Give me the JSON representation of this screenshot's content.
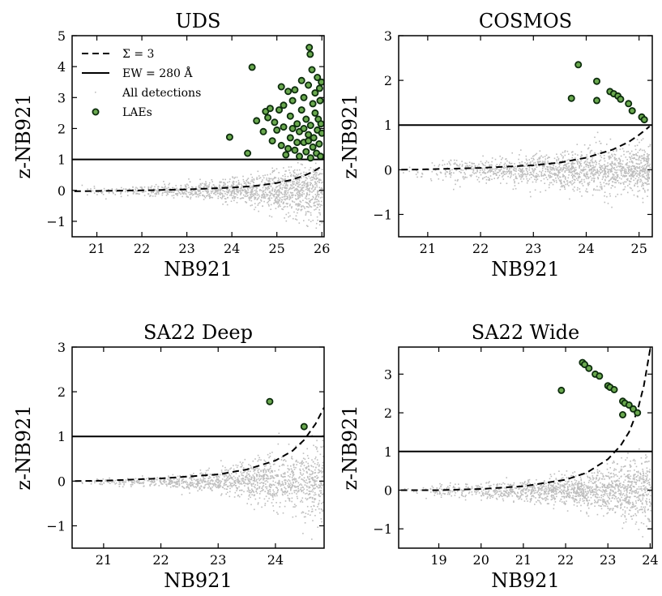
{
  "chart_data": [
    {
      "type": "scatter",
      "title": "UDS",
      "xlabel": "NB921",
      "ylabel": "z-NB921",
      "xlim": [
        20.45,
        26.05
      ],
      "ylim": [
        -1.5,
        5.0
      ],
      "xticks": [
        "21",
        "22",
        "23",
        "24",
        "25",
        "26"
      ],
      "yticks": [
        "−1",
        "0",
        "1",
        "2",
        "3",
        "4",
        "5"
      ],
      "ew_line_y": 1.0,
      "sigma_curve": {
        "x": [
          20.5,
          21,
          22,
          23,
          24,
          24.5,
          25,
          25.3,
          25.6,
          25.8,
          26.0
        ],
        "y": [
          -0.03,
          -0.02,
          0.0,
          0.03,
          0.09,
          0.14,
          0.24,
          0.33,
          0.47,
          0.6,
          0.78
        ]
      },
      "all_detections": {
        "xmin": 20.45,
        "xmax": 26.0,
        "spread": [
          [
            20.5,
            0.12
          ],
          [
            22,
            0.15
          ],
          [
            23,
            0.22
          ],
          [
            24,
            0.35
          ],
          [
            25,
            0.55
          ],
          [
            26,
            0.9
          ]
        ],
        "count": 1400
      },
      "laes": [
        {
          "x": 24.45,
          "y": 3.98
        },
        {
          "x": 23.95,
          "y": 1.72
        },
        {
          "x": 24.35,
          "y": 1.2
        },
        {
          "x": 24.55,
          "y": 2.25
        },
        {
          "x": 24.7,
          "y": 1.9
        },
        {
          "x": 24.75,
          "y": 2.55
        },
        {
          "x": 24.8,
          "y": 2.35
        },
        {
          "x": 24.85,
          "y": 2.65
        },
        {
          "x": 24.9,
          "y": 1.6
        },
        {
          "x": 24.95,
          "y": 2.2
        },
        {
          "x": 25.0,
          "y": 1.95
        },
        {
          "x": 25.05,
          "y": 2.6
        },
        {
          "x": 25.1,
          "y": 3.35
        },
        {
          "x": 25.1,
          "y": 1.45
        },
        {
          "x": 25.15,
          "y": 2.05
        },
        {
          "x": 25.2,
          "y": 1.15
        },
        {
          "x": 25.25,
          "y": 3.2
        },
        {
          "x": 25.3,
          "y": 2.4
        },
        {
          "x": 25.3,
          "y": 1.7
        },
        {
          "x": 25.35,
          "y": 2.9
        },
        {
          "x": 25.4,
          "y": 3.25
        },
        {
          "x": 25.4,
          "y": 1.3
        },
        {
          "x": 25.45,
          "y": 2.15
        },
        {
          "x": 25.5,
          "y": 1.9
        },
        {
          "x": 25.5,
          "y": 1.1
        },
        {
          "x": 25.55,
          "y": 3.55
        },
        {
          "x": 25.55,
          "y": 2.6
        },
        {
          "x": 25.6,
          "y": 1.55
        },
        {
          "x": 25.6,
          "y": 3.0
        },
        {
          "x": 25.65,
          "y": 1.25
        },
        {
          "x": 25.65,
          "y": 2.3
        },
        {
          "x": 25.7,
          "y": 3.4
        },
        {
          "x": 25.7,
          "y": 1.8
        },
        {
          "x": 25.72,
          "y": 4.62
        },
        {
          "x": 25.74,
          "y": 4.4
        },
        {
          "x": 25.75,
          "y": 2.1
        },
        {
          "x": 25.75,
          "y": 1.05
        },
        {
          "x": 25.78,
          "y": 3.9
        },
        {
          "x": 25.8,
          "y": 2.8
        },
        {
          "x": 25.8,
          "y": 1.4
        },
        {
          "x": 25.82,
          "y": 1.7
        },
        {
          "x": 25.85,
          "y": 3.15
        },
        {
          "x": 25.85,
          "y": 2.5
        },
        {
          "x": 25.88,
          "y": 1.2
        },
        {
          "x": 25.9,
          "y": 3.65
        },
        {
          "x": 25.9,
          "y": 1.95
        },
        {
          "x": 25.92,
          "y": 2.3
        },
        {
          "x": 25.94,
          "y": 1.5
        },
        {
          "x": 25.95,
          "y": 3.3
        },
        {
          "x": 25.96,
          "y": 2.9
        },
        {
          "x": 25.97,
          "y": 1.1
        },
        {
          "x": 25.98,
          "y": 2.15
        },
        {
          "x": 25.99,
          "y": 3.5
        },
        {
          "x": 26.0,
          "y": 1.85
        },
        {
          "x": 25.45,
          "y": 1.55
        },
        {
          "x": 25.35,
          "y": 2.0
        },
        {
          "x": 25.6,
          "y": 2.0
        },
        {
          "x": 25.25,
          "y": 1.35
        },
        {
          "x": 25.15,
          "y": 2.75
        },
        {
          "x": 25.7,
          "y": 1.6
        }
      ],
      "legend": {
        "position": "top-left",
        "entries": [
          {
            "style": "dashed",
            "label": "Σ = 3"
          },
          {
            "style": "solid",
            "label": "EW = 280 Å"
          },
          {
            "style": "points",
            "label": "All detections"
          },
          {
            "style": "circle",
            "label": "LAEs"
          }
        ]
      }
    },
    {
      "type": "scatter",
      "title": "COSMOS",
      "xlabel": "NB921",
      "ylabel": "z-NB921",
      "xlim": [
        20.45,
        25.25
      ],
      "ylim": [
        -1.5,
        3.0
      ],
      "xticks": [
        "21",
        "22",
        "23",
        "24",
        "25"
      ],
      "yticks": [
        "−1",
        "0",
        "1",
        "2",
        "3"
      ],
      "ew_line_y": 1.0,
      "sigma_curve": {
        "x": [
          20.5,
          21,
          22,
          23,
          23.5,
          24,
          24.5,
          24.8,
          25.0,
          25.2
        ],
        "y": [
          0.0,
          0.01,
          0.04,
          0.1,
          0.16,
          0.27,
          0.45,
          0.62,
          0.78,
          0.97
        ]
      },
      "all_detections": {
        "xmin": 20.45,
        "xmax": 25.2,
        "spread": [
          [
            20.5,
            0.2
          ],
          [
            22,
            0.25
          ],
          [
            23,
            0.32
          ],
          [
            24,
            0.42
          ],
          [
            25.2,
            0.5
          ]
        ],
        "count": 1500
      },
      "laes": [
        {
          "x": 23.85,
          "y": 2.35
        },
        {
          "x": 24.2,
          "y": 1.98
        },
        {
          "x": 23.72,
          "y": 1.6
        },
        {
          "x": 24.2,
          "y": 1.55
        },
        {
          "x": 24.45,
          "y": 1.75
        },
        {
          "x": 24.52,
          "y": 1.7
        },
        {
          "x": 24.6,
          "y": 1.65
        },
        {
          "x": 24.65,
          "y": 1.58
        },
        {
          "x": 24.8,
          "y": 1.48
        },
        {
          "x": 24.87,
          "y": 1.32
        },
        {
          "x": 25.05,
          "y": 1.18
        },
        {
          "x": 25.1,
          "y": 1.12
        }
      ]
    },
    {
      "type": "scatter",
      "title": "SA22 Deep",
      "xlabel": "NB921",
      "ylabel": "z-NB921",
      "xlim": [
        20.45,
        24.85
      ],
      "ylim": [
        -1.5,
        3.0
      ],
      "xticks": [
        "21",
        "22",
        "23",
        "24"
      ],
      "yticks": [
        "−1",
        "0",
        "1",
        "2",
        "3"
      ],
      "ew_line_y": 1.0,
      "sigma_curve": {
        "x": [
          20.5,
          21,
          22,
          23,
          23.5,
          24,
          24.3,
          24.5,
          24.7,
          24.85
        ],
        "y": [
          0.0,
          0.01,
          0.06,
          0.15,
          0.26,
          0.46,
          0.68,
          0.92,
          1.28,
          1.65
        ]
      },
      "all_detections": {
        "xmin": 20.45,
        "xmax": 24.85,
        "spread": [
          [
            20.5,
            0.05
          ],
          [
            22,
            0.12
          ],
          [
            23,
            0.25
          ],
          [
            24,
            0.5
          ],
          [
            24.85,
            0.85
          ]
        ],
        "count": 1300
      },
      "laes": [
        {
          "x": 23.9,
          "y": 1.78
        },
        {
          "x": 24.5,
          "y": 1.22
        }
      ]
    },
    {
      "type": "scatter",
      "title": "SA22 Wide",
      "xlabel": "NB921",
      "ylabel": "z-NB921",
      "xlim": [
        18.05,
        24.05
      ],
      "ylim": [
        -1.5,
        3.7
      ],
      "xticks": [
        "19",
        "20",
        "21",
        "22",
        "23",
        "24"
      ],
      "yticks": [
        "−1",
        "0",
        "1",
        "2",
        "3"
      ],
      "ew_line_y": 1.0,
      "sigma_curve": {
        "x": [
          18.1,
          19,
          20,
          21,
          22,
          22.5,
          23,
          23.3,
          23.5,
          23.7,
          23.85,
          24.0
        ],
        "y": [
          0.0,
          0.0,
          0.03,
          0.1,
          0.27,
          0.45,
          0.8,
          1.15,
          1.5,
          2.05,
          2.7,
          3.65
        ]
      },
      "all_detections": {
        "xmin": 18.05,
        "xmax": 24.0,
        "spread": [
          [
            18.1,
            0.12
          ],
          [
            20,
            0.18
          ],
          [
            21.5,
            0.28
          ],
          [
            23,
            0.5
          ],
          [
            24,
            0.8
          ]
        ],
        "count": 1500
      },
      "laes": [
        {
          "x": 21.9,
          "y": 2.58
        },
        {
          "x": 22.4,
          "y": 3.3
        },
        {
          "x": 22.45,
          "y": 3.25
        },
        {
          "x": 22.55,
          "y": 3.15
        },
        {
          "x": 22.7,
          "y": 3.0
        },
        {
          "x": 22.8,
          "y": 2.95
        },
        {
          "x": 23.0,
          "y": 2.7
        },
        {
          "x": 23.05,
          "y": 2.66
        },
        {
          "x": 23.15,
          "y": 2.6
        },
        {
          "x": 23.35,
          "y": 2.3
        },
        {
          "x": 23.4,
          "y": 2.25
        },
        {
          "x": 23.5,
          "y": 2.2
        },
        {
          "x": 23.6,
          "y": 2.1
        },
        {
          "x": 23.7,
          "y": 2.0
        },
        {
          "x": 23.35,
          "y": 1.95
        }
      ]
    }
  ]
}
